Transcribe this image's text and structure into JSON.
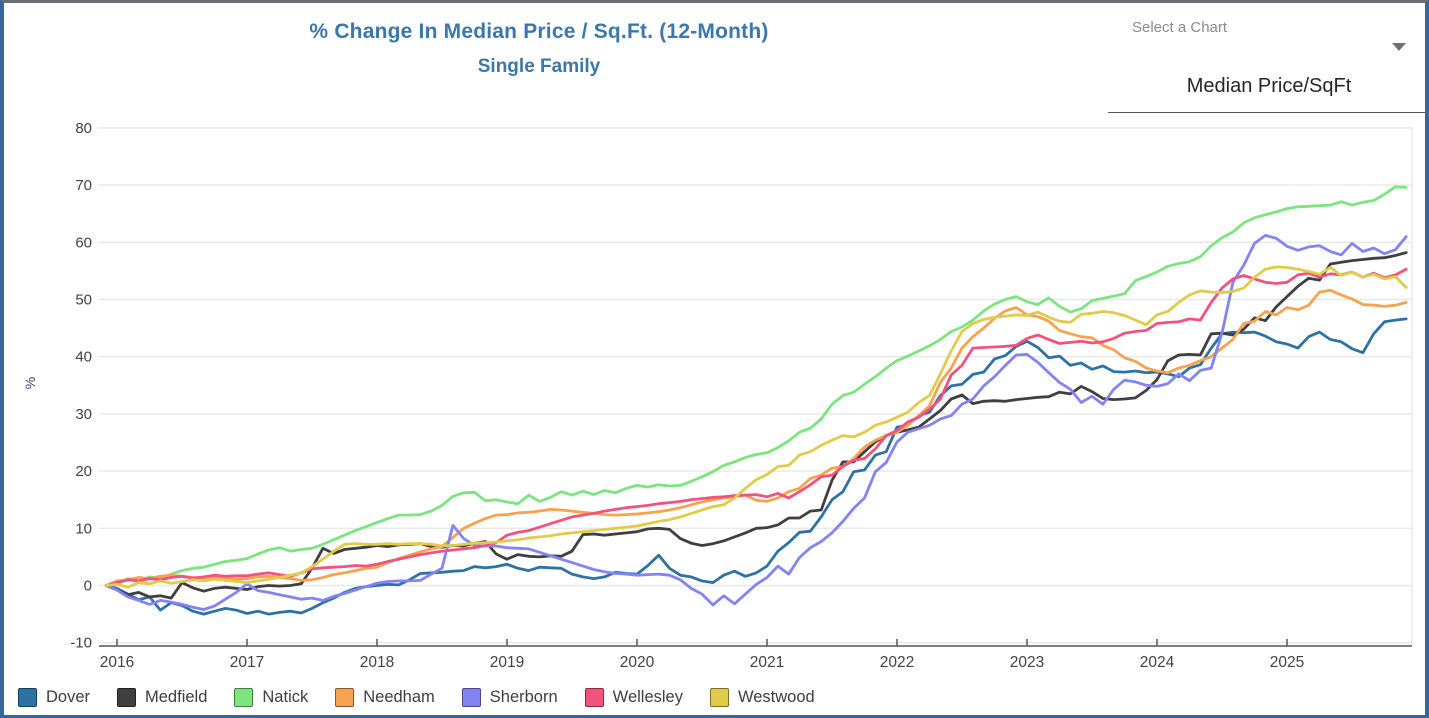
{
  "header": {
    "title": "% Change In Median Price / Sq.Ft. (12-Month)",
    "subtitle": "Single Family",
    "title_color": "#3b77aa"
  },
  "chart_selector": {
    "label": "Select a Chart",
    "value": "Median Price/SqFt",
    "icon": "caret-down-icon"
  },
  "chart_data": {
    "type": "line",
    "title": "% Change In Median Price / Sq.Ft. (12-Month)",
    "subtitle": "Single Family",
    "xlabel": "",
    "ylabel": "%",
    "ylim": [
      -10,
      80
    ],
    "y_ticks": [
      80,
      70,
      60,
      50,
      40,
      30,
      20,
      10,
      0,
      -10
    ],
    "x_ticks": [
      2016,
      2017,
      2018,
      2019,
      2020,
      2021,
      2022,
      2023,
      2024,
      2025
    ],
    "x_start_year": 2015.92,
    "x_interval": "monthly",
    "grid": true,
    "legend_position": "bottom",
    "axis_color": "#565656",
    "grid_color": "#e8e8e8",
    "series": [
      {
        "name": "Dover",
        "color": "#2e72a4",
        "values": [
          0,
          -0.5,
          -1.5,
          -2.5,
          -2.0,
          -4.3,
          -3.0,
          -3.5,
          -4.5,
          -5.0,
          -4.5,
          -4.0,
          -4.3,
          -4.9,
          -4.5,
          -5.0,
          -4.7,
          -4.5,
          -4.8,
          -4.0,
          -3.0,
          -2.2,
          -1.2,
          -0.5,
          -0.2,
          0.0,
          0.2,
          0.1,
          1.0,
          2.1,
          2.2,
          2.3,
          2.5,
          2.6,
          3.3,
          3.1,
          3.3,
          3.7,
          3.0,
          2.6,
          3.2,
          3.1,
          3.0,
          2.0,
          1.5,
          1.2,
          1.5,
          2.3,
          2.1,
          2.0,
          3.5,
          5.3,
          3.0,
          1.8,
          1.5,
          0.8,
          0.5,
          1.8,
          2.5,
          1.6,
          2.2,
          3.4,
          6.0,
          7.5,
          9.3,
          9.5,
          12.0,
          15.0,
          16.4,
          19.9,
          20.2,
          22.8,
          23.4,
          27.7,
          28.0,
          29.7,
          30.3,
          33.2,
          34.9,
          35.2,
          36.9,
          37.3,
          39.6,
          40.2,
          41.8,
          42.7,
          41.6,
          39.8,
          40.1,
          38.5,
          38.9,
          37.8,
          38.4,
          37.4,
          37.3,
          37.5,
          37.2,
          37.3,
          37.0,
          36.5,
          38.0,
          38.6,
          41.5,
          44.0,
          44.3,
          44.2,
          44.3,
          43.6,
          42.6,
          42.2,
          41.5,
          43.5,
          44.3,
          43.0,
          42.6,
          41.4,
          40.7,
          44.0,
          46.1,
          46.4,
          46.6
        ]
      },
      {
        "name": "Medfield",
        "color": "#3f3f3f",
        "values": [
          0,
          -0.8,
          -1.6,
          -1.2,
          -2.0,
          -1.8,
          -2.2,
          0.5,
          -0.4,
          -1.0,
          -0.5,
          -0.3,
          -0.5,
          -0.7,
          -0.2,
          0.0,
          -0.1,
          0.0,
          0.3,
          3.0,
          6.5,
          5.6,
          6.3,
          6.5,
          6.7,
          7.0,
          6.8,
          7.1,
          7.2,
          7.3,
          6.8,
          6.7,
          7.0,
          6.9,
          7.4,
          7.7,
          5.5,
          4.6,
          5.4,
          5.1,
          5.0,
          5.2,
          5.1,
          6.0,
          8.9,
          9.0,
          8.8,
          9.0,
          9.2,
          9.4,
          9.9,
          10.0,
          9.8,
          8.2,
          7.4,
          7.0,
          7.3,
          7.8,
          8.5,
          9.2,
          10.0,
          10.1,
          10.6,
          11.8,
          11.8,
          13.0,
          13.2,
          18.4,
          21.6,
          21.6,
          23.4,
          25.1,
          26.2,
          26.8,
          27.2,
          27.7,
          29.1,
          30.6,
          32.6,
          33.3,
          31.8,
          32.2,
          32.3,
          32.2,
          32.5,
          32.7,
          32.9,
          33.0,
          33.8,
          33.5,
          34.8,
          33.9,
          32.7,
          32.5,
          32.6,
          32.8,
          34.1,
          36.0,
          39.3,
          40.3,
          40.4,
          40.3,
          44.0,
          44.1,
          43.8,
          44.8,
          46.8,
          46.3,
          48.7,
          50.5,
          52.3,
          53.7,
          53.4,
          56.2,
          56.5,
          56.8,
          57.0,
          57.2,
          57.3,
          57.7,
          58.2
        ]
      },
      {
        "name": "Natick",
        "color": "#7ce580",
        "values": [
          0,
          0.3,
          1.2,
          0.8,
          1.5,
          1.2,
          2.0,
          2.6,
          3.0,
          3.2,
          3.7,
          4.2,
          4.4,
          4.7,
          5.5,
          6.2,
          6.6,
          6.0,
          6.3,
          6.5,
          7.2,
          8.0,
          8.8,
          9.6,
          10.3,
          11.0,
          11.7,
          12.3,
          12.3,
          12.4,
          13.0,
          14.0,
          15.6,
          16.2,
          16.3,
          14.8,
          15.0,
          14.6,
          14.3,
          15.8,
          14.7,
          15.4,
          16.4,
          15.8,
          16.5,
          15.9,
          16.6,
          16.2,
          17.0,
          17.5,
          17.2,
          17.6,
          17.4,
          17.5,
          18.2,
          19.0,
          19.9,
          21.0,
          21.6,
          22.4,
          22.9,
          23.2,
          24.1,
          25.3,
          26.8,
          27.5,
          29.1,
          31.7,
          33.2,
          33.8,
          35.2,
          36.5,
          38.0,
          39.3,
          40.1,
          41.0,
          41.9,
          43.0,
          44.4,
          45.2,
          46.4,
          48.0,
          49.2,
          50.0,
          50.5,
          49.6,
          49.1,
          50.3,
          48.8,
          47.8,
          48.4,
          49.8,
          50.2,
          50.6,
          51.0,
          53.3,
          54.0,
          54.8,
          55.8,
          56.3,
          56.6,
          57.5,
          59.4,
          60.8,
          61.8,
          63.4,
          64.3,
          64.8,
          65.3,
          65.9,
          66.2,
          66.3,
          66.4,
          66.5,
          67.1,
          66.5,
          67.0,
          67.3,
          68.4,
          69.7,
          69.6
        ]
      },
      {
        "name": "Needham",
        "color": "#f6a351",
        "values": [
          0,
          0.8,
          1.0,
          1.4,
          1.2,
          1.6,
          1.8,
          1.6,
          1.4,
          1.3,
          1.5,
          1.2,
          1.1,
          1.2,
          1.5,
          1.6,
          1.4,
          1.2,
          0.9,
          1.0,
          1.4,
          1.9,
          2.2,
          2.6,
          3.0,
          3.2,
          4.0,
          4.7,
          5.3,
          5.9,
          6.4,
          6.8,
          8.4,
          10.0,
          10.9,
          11.7,
          12.3,
          12.4,
          12.7,
          12.8,
          13.0,
          13.3,
          13.2,
          13.0,
          12.8,
          12.6,
          12.4,
          12.3,
          12.4,
          12.5,
          12.7,
          12.9,
          13.2,
          13.6,
          14.1,
          14.6,
          15.0,
          15.3,
          15.5,
          15.8,
          14.9,
          14.7,
          15.3,
          16.4,
          17.0,
          18.7,
          19.3,
          20.5,
          20.8,
          22.2,
          24.2,
          25.4,
          26.2,
          26.8,
          28.0,
          29.7,
          31.4,
          35.5,
          38.0,
          41.5,
          43.5,
          45.0,
          46.7,
          48.0,
          48.6,
          47.3,
          47.0,
          46.2,
          44.6,
          44.0,
          43.5,
          43.3,
          42.0,
          41.2,
          39.8,
          39.2,
          38.0,
          37.5,
          37.2,
          38.0,
          38.5,
          39.3,
          40.0,
          41.5,
          43.0,
          45.8,
          46.2,
          47.9,
          47.3,
          48.6,
          48.2,
          49.0,
          51.3,
          51.6,
          50.8,
          50.1,
          49.1,
          49.0,
          48.8,
          49.0,
          49.5
        ]
      },
      {
        "name": "Sherborn",
        "color": "#8383f3",
        "values": [
          0,
          -0.8,
          -2.0,
          -2.6,
          -3.3,
          -2.6,
          -2.9,
          -3.3,
          -3.8,
          -4.2,
          -3.6,
          -2.4,
          -1.2,
          0.3,
          -0.9,
          -1.2,
          -1.6,
          -2.0,
          -2.4,
          -2.2,
          -2.6,
          -1.9,
          -1.4,
          -0.8,
          -0.2,
          0.4,
          0.7,
          0.8,
          0.8,
          0.9,
          2.0,
          3.0,
          10.5,
          8.2,
          7.0,
          6.9,
          6.9,
          6.6,
          6.5,
          6.4,
          5.8,
          5.2,
          4.6,
          4.0,
          3.4,
          2.8,
          2.4,
          2.1,
          2.0,
          1.8,
          1.9,
          2.0,
          1.8,
          1.0,
          -0.5,
          -1.5,
          -3.4,
          -1.8,
          -3.2,
          -1.5,
          0.2,
          1.4,
          3.4,
          2.0,
          4.9,
          6.6,
          7.7,
          9.2,
          11.2,
          13.5,
          15.3,
          19.9,
          21.5,
          25.1,
          26.8,
          27.4,
          28.0,
          29.1,
          29.7,
          31.7,
          32.6,
          34.9,
          36.5,
          38.5,
          40.3,
          40.4,
          39.0,
          37.2,
          35.5,
          34.3,
          32.0,
          33.1,
          31.7,
          34.3,
          35.9,
          35.6,
          35.0,
          34.8,
          35.3,
          37.0,
          35.8,
          37.6,
          38.0,
          44.1,
          53.0,
          56.0,
          59.8,
          61.2,
          60.7,
          59.3,
          58.6,
          59.2,
          59.4,
          58.4,
          57.8,
          59.8,
          58.4,
          59.0,
          58.0,
          58.7,
          61.0
        ]
      },
      {
        "name": "Wellesley",
        "color": "#f2527e",
        "values": [
          0,
          0.5,
          1.0,
          0.8,
          1.2,
          1.0,
          1.4,
          1.6,
          1.3,
          1.5,
          1.8,
          1.6,
          1.7,
          1.7,
          2.0,
          2.2,
          1.9,
          1.6,
          2.2,
          2.9,
          3.1,
          3.2,
          3.3,
          3.5,
          3.4,
          3.7,
          4.2,
          4.6,
          5.0,
          5.4,
          5.7,
          6.0,
          6.2,
          6.4,
          6.6,
          7.0,
          7.5,
          8.8,
          9.3,
          9.6,
          10.2,
          10.8,
          11.4,
          12.0,
          12.3,
          12.6,
          13.0,
          13.3,
          13.6,
          13.8,
          14.0,
          14.3,
          14.5,
          14.7,
          15.0,
          15.2,
          15.4,
          15.5,
          15.7,
          15.8,
          15.9,
          15.5,
          16.1,
          15.3,
          16.4,
          17.6,
          19.0,
          19.3,
          20.8,
          21.9,
          22.2,
          23.9,
          26.2,
          27.1,
          28.6,
          29.4,
          30.8,
          32.6,
          36.8,
          38.5,
          41.5,
          41.6,
          41.7,
          41.8,
          42.0,
          43.2,
          43.8,
          43.0,
          42.3,
          42.5,
          42.7,
          42.4,
          42.6,
          43.2,
          44.1,
          44.4,
          44.6,
          45.8,
          46.0,
          46.1,
          46.6,
          46.4,
          49.5,
          52.0,
          53.6,
          54.2,
          53.6,
          53.0,
          52.8,
          53.0,
          54.3,
          54.6,
          53.9,
          54.5,
          54.3,
          54.8,
          53.9,
          54.6,
          53.8,
          54.3,
          55.3
        ]
      },
      {
        "name": "Westwood",
        "color": "#e2cb49",
        "values": [
          0,
          0.2,
          -0.3,
          0.5,
          0.3,
          0.8,
          0.4,
          0.7,
          1.0,
          0.8,
          1.1,
          0.9,
          0.7,
          0.5,
          0.8,
          1.1,
          1.4,
          1.8,
          2.2,
          3.3,
          4.6,
          6.0,
          7.2,
          7.3,
          7.2,
          7.2,
          7.3,
          7.2,
          7.3,
          7.3,
          7.2,
          6.9,
          7.0,
          7.2,
          7.4,
          7.5,
          7.6,
          7.8,
          8.0,
          8.3,
          8.5,
          8.7,
          9.0,
          9.2,
          9.4,
          9.6,
          9.8,
          10.0,
          10.2,
          10.4,
          10.8,
          11.2,
          11.5,
          12.0,
          12.6,
          13.2,
          13.8,
          14.1,
          15.3,
          17.0,
          18.5,
          19.4,
          20.8,
          21.0,
          22.8,
          23.4,
          24.5,
          25.4,
          26.2,
          26.0,
          26.8,
          28.0,
          28.6,
          29.4,
          30.3,
          32.0,
          33.2,
          37.0,
          41.0,
          44.4,
          45.8,
          46.5,
          46.9,
          47.1,
          47.3,
          47.2,
          47.8,
          46.9,
          46.2,
          46.0,
          47.4,
          47.6,
          47.9,
          47.7,
          47.2,
          46.4,
          45.6,
          47.3,
          47.9,
          49.5,
          50.8,
          51.5,
          51.3,
          51.2,
          51.4,
          52.0,
          53.9,
          55.3,
          55.7,
          55.6,
          55.3,
          54.9,
          54.4,
          55.6,
          54.2,
          54.8,
          53.9,
          54.4,
          53.6,
          54.0,
          52.1
        ]
      }
    ]
  }
}
